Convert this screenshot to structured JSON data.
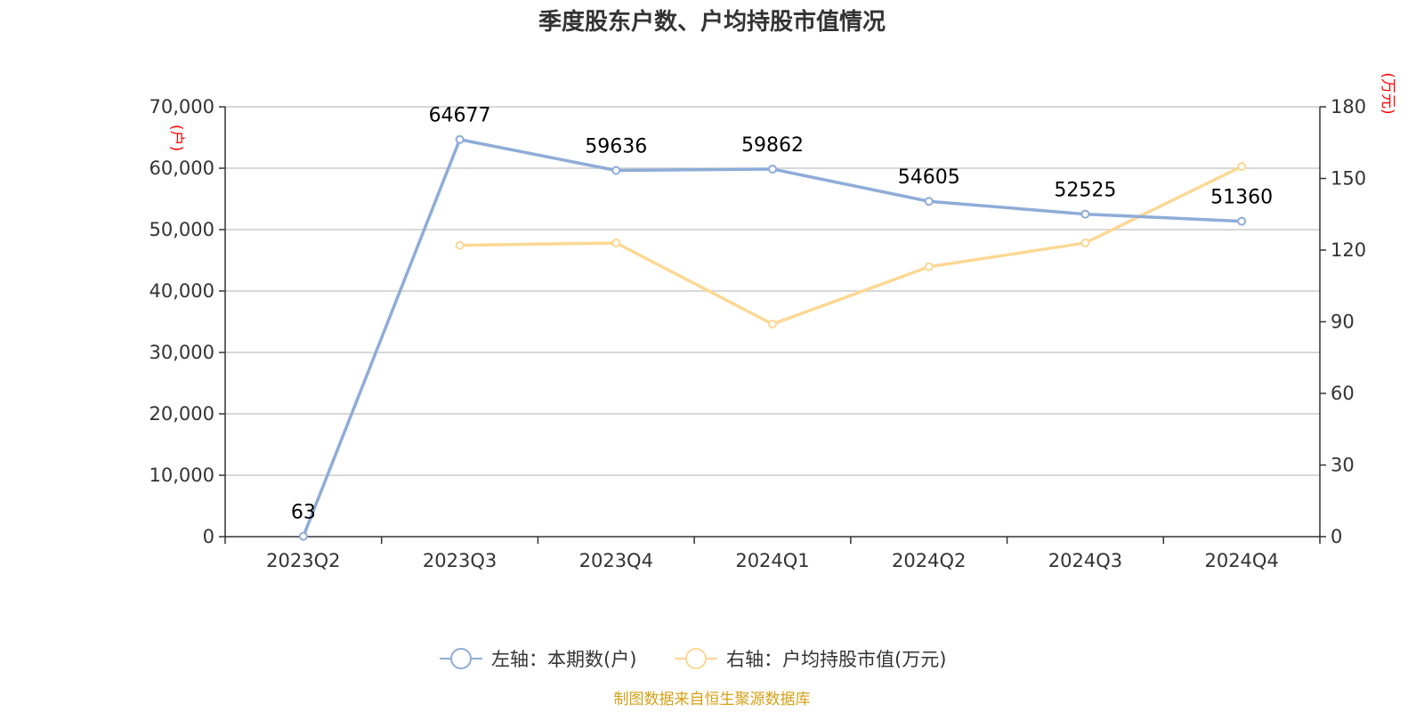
{
  "chart_data": {
    "type": "line",
    "title": "季度股东户数、户均持股市值情况",
    "categories": [
      "2023Q2",
      "2023Q3",
      "2023Q4",
      "2024Q1",
      "2024Q2",
      "2024Q3",
      "2024Q4"
    ],
    "series": [
      {
        "name": "左轴：本期数(户)",
        "axis": "left",
        "color": "#8eacd8",
        "values": [
          63,
          64677,
          59636,
          59862,
          54605,
          52525,
          51360
        ],
        "data_labels": [
          "63",
          "64677",
          "59636",
          "59862",
          "54605",
          "52525",
          "51360"
        ]
      },
      {
        "name": "右轴：户均持股市值(万元)",
        "axis": "right",
        "color": "#fcd894",
        "values": [
          null,
          122,
          123,
          89,
          113,
          123,
          155
        ]
      }
    ],
    "left_axis": {
      "unit_label": "(户)",
      "ylim": [
        0,
        70000
      ],
      "ticks": [
        "0",
        "10,000",
        "20,000",
        "30,000",
        "40,000",
        "50,000",
        "60,000",
        "70,000"
      ]
    },
    "right_axis": {
      "unit_label": "(万元)",
      "ylim": [
        0,
        180
      ],
      "ticks": [
        "0",
        "30",
        "60",
        "90",
        "120",
        "150",
        "180"
      ]
    },
    "grid": true,
    "legend_position": "bottom-center",
    "source": "制图数据来自恒生聚源数据库"
  }
}
